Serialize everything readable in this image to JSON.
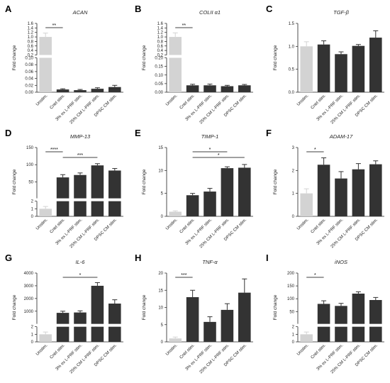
{
  "categories": [
    "Unstim.",
    "Cntrl stim.",
    "3% ex L-PRF stim.",
    "25% CM L-PRF stim.",
    "DPSC CM stim."
  ],
  "ylabel": "Fold change",
  "colors": {
    "unstim": "#d3d3d3",
    "stim": "#333333",
    "axis": "#222222"
  },
  "chart_data": [
    {
      "type": "bar",
      "panel": "A",
      "title": "ACAN",
      "ylabel": "Fold change",
      "categories": [
        "Unstim.",
        "Cntrl stim.",
        "3% ex L-PRF stim.",
        "25% CM L-PRF stim.",
        "DPSC CM stim."
      ],
      "values": [
        1.0,
        0.008,
        0.006,
        0.01,
        0.015
      ],
      "errors": [
        0.17,
        0.002,
        0.002,
        0.003,
        0.005
      ],
      "broken_axis": true,
      "lower_range": [
        0,
        0.1
      ],
      "upper_range": [
        0.2,
        1.6
      ],
      "lower_ticks": [
        "0.00",
        "0.02",
        "0.04",
        "0.06",
        "0.08",
        "0.10"
      ],
      "upper_ticks": [
        "0.2",
        "0.4",
        "0.6",
        "0.8",
        "1.0",
        "1.2",
        "1.4",
        "1.6"
      ],
      "significance": [
        {
          "from": 0,
          "to": 1,
          "label": "**"
        }
      ]
    },
    {
      "type": "bar",
      "panel": "B",
      "title": "COLII α1",
      "ylabel": "Fold change",
      "categories": [
        "Unstim.",
        "Cntrl stim.",
        "3% ex L-PRF stim.",
        "25% CM L-PRF stim.",
        "DPSC CM stim."
      ],
      "values": [
        1.0,
        0.04,
        0.04,
        0.035,
        0.04
      ],
      "errors": [
        0.18,
        0.006,
        0.007,
        0.005,
        0.005
      ],
      "broken_axis": true,
      "lower_range": [
        0,
        0.2
      ],
      "upper_range": [
        0.2,
        1.6
      ],
      "lower_ticks": [
        "0.00",
        "0.05",
        "0.10",
        "0.15",
        "0.20"
      ],
      "upper_ticks": [
        "0.2",
        "0.4",
        "0.6",
        "0.8",
        "1.0",
        "1.2",
        "1.4",
        "1.6"
      ],
      "significance": [
        {
          "from": 0,
          "to": 1,
          "label": "**"
        }
      ]
    },
    {
      "type": "bar",
      "panel": "C",
      "title": "TGF-β",
      "ylabel": "Fold change",
      "categories": [
        "Unstim.",
        "Cntrl stim.",
        "3% ex L-PRF stim.",
        "25% CM L-PRF stim.",
        "DPSC CM stim."
      ],
      "values": [
        1.0,
        1.04,
        0.83,
        1.01,
        1.19
      ],
      "errors": [
        0.1,
        0.08,
        0.05,
        0.03,
        0.15
      ],
      "broken_axis": false,
      "ylim": [
        0,
        1.5
      ],
      "ticks": [
        "0.0",
        "0.5",
        "1.0",
        "1.5"
      ],
      "significance": []
    },
    {
      "type": "bar",
      "panel": "D",
      "title": "MMP-13",
      "ylabel": "Fold change",
      "categories": [
        "Unstim.",
        "Cntrl stim.",
        "3% ex L-PRF stim.",
        "25% CM L-PRF stim.",
        "DPSC CM stim."
      ],
      "values": [
        1.0,
        63,
        70,
        98,
        83
      ],
      "errors": [
        0.3,
        8,
        6,
        5,
        6
      ],
      "broken_axis": true,
      "lower_range": [
        0,
        2
      ],
      "upper_range": [
        2,
        150
      ],
      "lower_ticks": [
        "0",
        "1",
        "2"
      ],
      "upper_ticks": [
        "50",
        "100",
        "150"
      ],
      "significance": [
        {
          "from": 0,
          "to": 1,
          "label": "****"
        },
        {
          "from": 1,
          "to": 3,
          "label": "***"
        }
      ]
    },
    {
      "type": "bar",
      "panel": "E",
      "title": "TIMP-1",
      "ylabel": "Fold change",
      "categories": [
        "Unstim.",
        "Cntrl stim.",
        "3% ex L-PRF stim.",
        "25% CM L-PRF stim.",
        "DPSC CM stim."
      ],
      "values": [
        1.0,
        4.6,
        5.4,
        10.5,
        10.6
      ],
      "errors": [
        0.2,
        0.4,
        0.7,
        0.3,
        0.7
      ],
      "broken_axis": false,
      "ylim": [
        0,
        15
      ],
      "ticks": [
        "0",
        "5",
        "10",
        "15"
      ],
      "significance": [
        {
          "from": 1,
          "to": 3,
          "label": "*"
        },
        {
          "from": 1,
          "to": 4,
          "label": "*"
        }
      ]
    },
    {
      "type": "bar",
      "panel": "F",
      "title": "ADAM-17",
      "ylabel": "Fold change",
      "categories": [
        "Unstim.",
        "Cntrl stim.",
        "3% ex L-PRF stim.",
        "25% CM L-PRF stim.",
        "DPSC CM stim."
      ],
      "values": [
        1.0,
        2.25,
        1.65,
        2.05,
        2.27
      ],
      "errors": [
        0.2,
        0.3,
        0.3,
        0.25,
        0.15
      ],
      "broken_axis": false,
      "ylim": [
        0,
        3
      ],
      "ticks": [
        "0",
        "1",
        "2",
        "3"
      ],
      "significance": [
        {
          "from": 0,
          "to": 1,
          "label": "*"
        }
      ]
    },
    {
      "type": "bar",
      "panel": "G",
      "title": "IL-6",
      "ylabel": "Fold change",
      "categories": [
        "Unstim.",
        "Cntrl stim.",
        "3% ex L-PRF stim.",
        "25% CM L-PRF stim.",
        "DPSC CM stim."
      ],
      "values": [
        1.0,
        870,
        900,
        3000,
        1600
      ],
      "errors": [
        0.3,
        130,
        130,
        250,
        300
      ],
      "broken_axis": true,
      "lower_range": [
        0,
        2
      ],
      "upper_range": [
        2,
        4000
      ],
      "lower_ticks": [
        "0",
        "1",
        "2"
      ],
      "upper_ticks": [
        "1000",
        "2000",
        "3000",
        "4000"
      ],
      "significance": [
        {
          "from": 1,
          "to": 3,
          "label": "*"
        }
      ]
    },
    {
      "type": "bar",
      "panel": "H",
      "title": "TNF-α",
      "ylabel": "Fold change",
      "categories": [
        "Unstim.",
        "Cntrl stim.",
        "3% ex L-PRF stim.",
        "25% CM L-PRF stim.",
        "DPSC CM stim."
      ],
      "values": [
        1.0,
        13,
        5.8,
        9.3,
        14.3
      ],
      "errors": [
        0.4,
        2,
        1.5,
        1.8,
        4
      ],
      "broken_axis": false,
      "ylim": [
        0,
        20
      ],
      "ticks": [
        "0",
        "5",
        "10",
        "15",
        "20"
      ],
      "significance": [
        {
          "from": 0,
          "to": 1,
          "label": "***"
        }
      ]
    },
    {
      "type": "bar",
      "panel": "I",
      "title": "iNOS",
      "ylabel": "Fold change",
      "categories": [
        "Unstim.",
        "Cntrl stim.",
        "3% ex L-PRF stim.",
        "25% CM L-PRF stim.",
        "DPSC CM stim."
      ],
      "values": [
        1.0,
        80,
        72,
        120,
        95
      ],
      "errors": [
        0.3,
        12,
        10,
        7,
        10
      ],
      "broken_axis": true,
      "lower_range": [
        0,
        2
      ],
      "upper_range": [
        2,
        200
      ],
      "lower_ticks": [
        "0",
        "1",
        "2"
      ],
      "upper_ticks": [
        "50",
        "100",
        "150",
        "200"
      ],
      "significance": [
        {
          "from": 0,
          "to": 1,
          "label": "*"
        }
      ]
    }
  ]
}
